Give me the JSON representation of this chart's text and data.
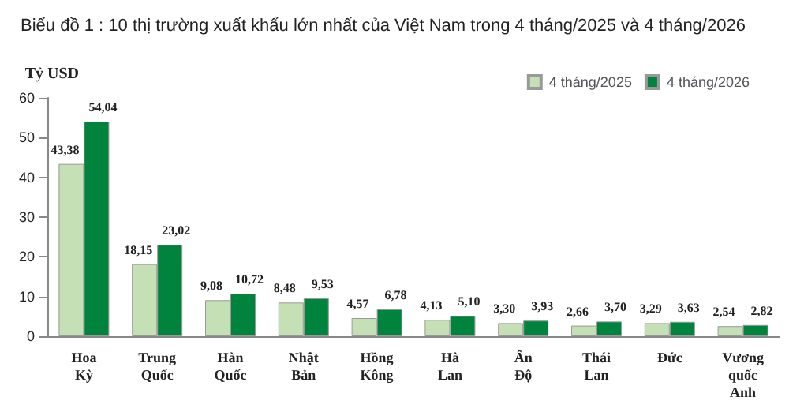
{
  "chart_data": {
    "type": "bar",
    "title": "Biểu đồ 1 : 10 thị trường xuất khẩu lớn nhất của Việt Nam trong 4 tháng/2025 và 4 tháng/2026",
    "ylabel": "Tỷ USD",
    "categories": [
      "Hoa Kỳ",
      "Trung Quốc",
      "Hàn Quốc",
      "Nhật Bản",
      "Hồng Kông",
      "Hà Lan",
      "Ấn Độ",
      "Thái Lan",
      "Đức",
      "Vương quốc Anh"
    ],
    "series": [
      {
        "name": "4 tháng/2025",
        "color": "#c5e0b4",
        "values": [
          43.38,
          18.15,
          9.08,
          8.48,
          4.57,
          4.13,
          3.3,
          2.66,
          3.29,
          2.54
        ],
        "value_labels": [
          "43,38",
          "18,15",
          "9,08",
          "8,48",
          "4,57",
          "4,13",
          "3,30",
          "2,66",
          "3,29",
          "2,54"
        ]
      },
      {
        "name": "4 tháng/2026",
        "color": "#00843d",
        "values": [
          54.04,
          23.02,
          10.72,
          9.53,
          6.78,
          5.1,
          3.93,
          3.7,
          3.63,
          2.82
        ],
        "value_labels": [
          "54,04",
          "23,02",
          "10,72",
          "9,53",
          "6,78",
          "5,10",
          "3,93",
          "3,70",
          "3,63",
          "2,82"
        ]
      }
    ],
    "ylim": [
      0,
      60
    ],
    "yticks": [
      0,
      10,
      20,
      30,
      40,
      50,
      60
    ],
    "grid": false,
    "legend": "top right"
  }
}
